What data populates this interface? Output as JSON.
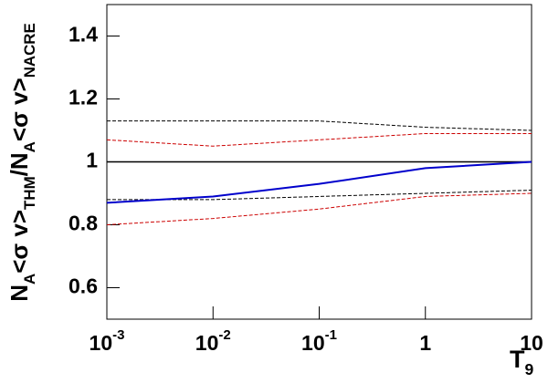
{
  "chart_data": {
    "type": "line",
    "ylabel": [
      {
        "text": "N"
      },
      {
        "text": "A",
        "sub": true
      },
      {
        "text": "<σ v>"
      },
      {
        "text": "THM",
        "sub": true
      },
      {
        "text": "/N"
      },
      {
        "text": "A",
        "sub": true
      },
      {
        "text": "<σ v>"
      },
      {
        "text": "NACRE",
        "sub": true
      }
    ],
    "xlabel": [
      {
        "text": "T"
      },
      {
        "text": "9",
        "sub": true
      }
    ],
    "x": [
      0.001,
      0.01,
      0.1,
      1,
      10
    ],
    "series": [
      {
        "color": "#000000",
        "dash": true,
        "values": [
          1.13,
          1.13,
          1.13,
          1.11,
          1.1
        ]
      },
      {
        "color": "#000000",
        "dash": true,
        "values": [
          0.88,
          0.88,
          0.89,
          0.9,
          0.91
        ]
      },
      {
        "color": "#cc0000",
        "dash": true,
        "values": [
          1.07,
          1.05,
          1.07,
          1.09,
          1.09
        ]
      },
      {
        "color": "#cc0000",
        "dash": true,
        "values": [
          0.8,
          0.82,
          0.85,
          0.89,
          0.9
        ]
      },
      {
        "color": "#0000cc",
        "dash": false,
        "values": [
          0.87,
          0.89,
          0.93,
          0.98,
          1.0
        ]
      }
    ],
    "reference_line": 1,
    "xlog": true,
    "xlim": [
      0.001,
      10
    ],
    "xticks": [
      {
        "value": 0.001,
        "label": "10",
        "sup": "-3"
      },
      {
        "value": 0.01,
        "label": "10",
        "sup": "-2"
      },
      {
        "value": 0.1,
        "label": "10",
        "sup": "-1"
      },
      1,
      10
    ],
    "ylim": [
      0.5,
      1.5
    ],
    "yticks": [
      0.6,
      0.8,
      1,
      1.2,
      1.4
    ]
  }
}
